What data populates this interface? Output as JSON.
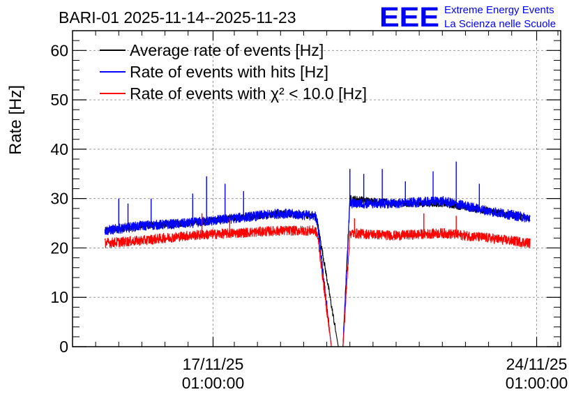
{
  "chart_data": {
    "type": "line",
    "title": "BARI-01 2025-11-14--2025-11-23",
    "ylabel": "Rate [Hz]",
    "xlabel": "",
    "ylim": [
      0,
      64
    ],
    "yticks": [
      "0",
      "10",
      "20",
      "30",
      "40",
      "50",
      "60"
    ],
    "x_unit": "days since 2025-11-14 00:00",
    "xlim": [
      0,
      10.56
    ],
    "xticks": [
      {
        "x": 3.04,
        "date": "17/11/25",
        "time": "01:00:00"
      },
      {
        "x": 10.04,
        "date": "24/11/25",
        "time": "01:00:00"
      }
    ],
    "grid": true,
    "legend_position": "top-left",
    "series": [
      {
        "name": "Average rate of events [Hz]",
        "color": "#000000",
        "x": [
          0.7,
          1.5,
          2.5,
          3.5,
          4.5,
          5.25,
          5.3,
          5.5,
          5.75,
          5.85,
          6.0,
          7.0,
          8.0,
          9.0,
          9.9
        ],
        "values": [
          23.5,
          24.5,
          25.0,
          26.0,
          27.0,
          26.5,
          25.0,
          14.0,
          0.0,
          0.0,
          30.0,
          29.0,
          29.0,
          27.5,
          26.0
        ]
      },
      {
        "name": "Rate of events with hits [Hz]",
        "color": "#0000ff",
        "x": [
          0.7,
          1.5,
          2.5,
          3.5,
          4.5,
          5.25,
          5.3,
          5.6,
          5.85,
          6.0,
          7.0,
          8.0,
          9.0,
          9.9
        ],
        "values": [
          23.5,
          24.5,
          25.0,
          26.0,
          27.0,
          26.5,
          25.0,
          0.0,
          0.0,
          29.0,
          29.0,
          29.5,
          27.5,
          26.0
        ],
        "spikes": [
          {
            "x": 1.0,
            "y": 30.0
          },
          {
            "x": 1.2,
            "y": 29.0
          },
          {
            "x": 1.7,
            "y": 30.0
          },
          {
            "x": 2.6,
            "y": 31.0
          },
          {
            "x": 2.9,
            "y": 34.5
          },
          {
            "x": 3.3,
            "y": 33.0
          },
          {
            "x": 3.7,
            "y": 31.5
          },
          {
            "x": 6.0,
            "y": 36.0
          },
          {
            "x": 6.3,
            "y": 35.0
          },
          {
            "x": 6.7,
            "y": 36.0
          },
          {
            "x": 7.2,
            "y": 33.5
          },
          {
            "x": 7.8,
            "y": 35.5
          },
          {
            "x": 8.3,
            "y": 37.5
          },
          {
            "x": 8.8,
            "y": 33.0
          }
        ]
      },
      {
        "name": "Rate of events with χ² < 10.0 [Hz]",
        "color": "#ff0000",
        "x": [
          0.7,
          1.5,
          2.5,
          3.5,
          4.5,
          5.25,
          5.3,
          5.6,
          5.85,
          6.0,
          7.0,
          8.0,
          9.0,
          9.9
        ],
        "values": [
          21.0,
          21.5,
          22.5,
          23.0,
          23.5,
          23.5,
          22.5,
          0.0,
          0.0,
          23.0,
          22.5,
          23.0,
          22.0,
          21.0
        ],
        "spikes": [
          {
            "x": 2.8,
            "y": 27.0
          },
          {
            "x": 3.4,
            "y": 26.0
          },
          {
            "x": 6.1,
            "y": 26.0
          },
          {
            "x": 7.6,
            "y": 27.0
          },
          {
            "x": 8.3,
            "y": 26.5
          }
        ]
      }
    ],
    "legend": [
      "Average rate of events [Hz]",
      "Rate of events with hits [Hz]",
      "Rate of events with χ² < 10.0 [Hz]"
    ]
  },
  "logo": {
    "mark": "EEE",
    "line1": "Extreme Energy Events",
    "line2": "La Scienza nelle Scuole",
    "color": "#0000ff"
  }
}
